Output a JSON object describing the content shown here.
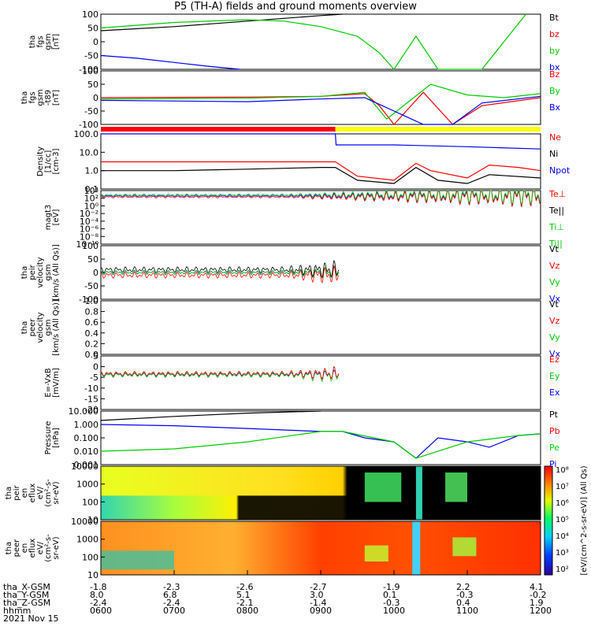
{
  "title": "P5 (TH-A) fields and ground moments overview",
  "panels": [
    {
      "id": "fgs-gsm",
      "ylabel": [
        "tha",
        "fgs",
        "gsm",
        "[nT]"
      ],
      "ticks": [
        "100",
        "50",
        "0",
        "-50",
        "-100"
      ],
      "legend": [
        {
          "name": "Bt",
          "color": "#000000"
        },
        {
          "name": "bz",
          "color": "#ff0000"
        },
        {
          "name": "by",
          "color": "#00cc00"
        },
        {
          "name": "bx",
          "color": "#0000ff"
        }
      ]
    },
    {
      "id": "fgs-gsm-t89",
      "ylabel": [
        "tha",
        "fgs",
        "gsm",
        "-t89",
        "[nT]"
      ],
      "ticks": [
        "100",
        "50",
        "0",
        "-50",
        "-100"
      ],
      "legend": [
        {
          "name": "Bz",
          "color": "#ff0000"
        },
        {
          "name": "By",
          "color": "#00cc00"
        },
        {
          "name": "Bx",
          "color": "#0000ff"
        }
      ]
    },
    {
      "id": "density",
      "ylabel": [
        "Density",
        "[1/cc]",
        "[cm-3]"
      ],
      "ticks": [
        "100.0",
        "10.0",
        "1.0",
        "0.1"
      ],
      "legend": [
        {
          "name": "Ne",
          "color": "#ff0000"
        },
        {
          "name": "Ni",
          "color": "#000000"
        },
        {
          "name": "Npot",
          "color": "#0000ff"
        }
      ]
    },
    {
      "id": "temperature",
      "ylabel": [
        "magt3",
        "[eV]"
      ],
      "ticks": [
        "10⁴",
        "10²",
        "10⁰",
        "10⁻²",
        "10⁻⁴",
        "10⁻⁶",
        "10⁻⁸",
        "10⁻¹⁰"
      ],
      "legend": [
        {
          "name": "Te⊥",
          "color": "#ff0000"
        },
        {
          "name": "Te||",
          "color": "#000000"
        },
        {
          "name": "Ti⊥",
          "color": "#00cc00"
        },
        {
          "name": "Ti||",
          "color": "#00cc00"
        }
      ]
    },
    {
      "id": "peir-velocity",
      "ylabel": [
        "tha",
        "peir",
        "velocity",
        "gsm",
        "[km/s (All Qs)]"
      ],
      "ticks": [
        "100",
        "50",
        "0",
        "-50",
        "-100"
      ],
      "legend": [
        {
          "name": "Vt",
          "color": "#000000"
        },
        {
          "name": "Vz",
          "color": "#ff0000"
        },
        {
          "name": "Vy",
          "color": "#00cc00"
        },
        {
          "name": "Vx",
          "color": "#0000ff"
        }
      ]
    },
    {
      "id": "peer-velocity",
      "ylabel": [
        "tha",
        "peer",
        "velocity",
        "gsm",
        "[km/s (All Qs)]"
      ],
      "ticks": [
        "1.0",
        "0.8",
        "0.6",
        "0.4",
        "0.2",
        "0.0"
      ],
      "legend": [
        {
          "name": "Vt",
          "color": "#000000"
        },
        {
          "name": "Vz",
          "color": "#ff0000"
        },
        {
          "name": "Vy",
          "color": "#00cc00"
        },
        {
          "name": "Vx",
          "color": "#0000ff"
        }
      ]
    },
    {
      "id": "efield",
      "ylabel": [
        "E=-VxB",
        "[mV/m]"
      ],
      "ticks": [
        "5",
        "0",
        "-5",
        "-10",
        "-15",
        "-20"
      ],
      "legend": [
        {
          "name": "Ez",
          "color": "#ff0000"
        },
        {
          "name": "Ey",
          "color": "#00cc00"
        },
        {
          "name": "Ex",
          "color": "#0000ff"
        }
      ]
    },
    {
      "id": "pressure",
      "ylabel": [
        "Pressure",
        "[nPa]"
      ],
      "ticks": [
        "10.000",
        "1.000",
        "0.100",
        "0.010",
        "0.001"
      ],
      "legend": [
        {
          "name": "Pt",
          "color": "#000000"
        },
        {
          "name": "Pb",
          "color": "#ff0000"
        },
        {
          "name": "Pe",
          "color": "#00cc00"
        },
        {
          "name": "Pi",
          "color": "#0000ff"
        }
      ]
    },
    {
      "id": "peir-spectrogram",
      "ylabel": [
        "tha",
        "peir",
        "en",
        "eflux",
        "eV/",
        "(cm²-s-",
        "sr-eV)"
      ],
      "ticks": [
        "10000",
        "1000",
        "100",
        "10"
      ],
      "legend": []
    },
    {
      "id": "peer-spectrogram",
      "ylabel": [
        "tha",
        "peer",
        "en",
        "eflux",
        "eV/",
        "(cm²-s-",
        "sr-eV)"
      ],
      "ticks": [
        "10000",
        "1000",
        "100",
        "10"
      ],
      "legend": []
    }
  ],
  "colorbar": {
    "ticks": [
      "10⁸",
      "10⁷",
      "10⁶",
      "10⁵",
      "10⁴",
      "10³",
      "10²"
    ],
    "label": "[eV/(cm^2-s-sr-eV)] (All Qs)"
  },
  "time_axis": {
    "rows": [
      {
        "label": "tha_X-GSM",
        "values": [
          "-1.8",
          "-2.3",
          "-2.6",
          "-2.7",
          "-1.9",
          "2.2",
          "4.1"
        ]
      },
      {
        "label": "tha_Y-GSM",
        "values": [
          "8.0",
          "6.8",
          "5.1",
          "3.0",
          "0.1",
          "-0.3",
          "-0.2"
        ]
      },
      {
        "label": "tha_Z-GSM",
        "values": [
          "-2.4",
          "-2.4",
          "-2.1",
          "-1.4",
          "-0.3",
          "0.4",
          "1.9"
        ]
      },
      {
        "label": "hhmm",
        "values": [
          "0600",
          "0700",
          "0800",
          "0900",
          "1000",
          "1100",
          "1200"
        ]
      }
    ],
    "date": "2021 Nov 15"
  },
  "chart_data": {
    "type": "line",
    "title": "P5 (TH-A) fields and ground moments overview",
    "x_unit": "UT hhmm",
    "x": [
      "0600",
      "0700",
      "0800",
      "0900",
      "1000",
      "1100",
      "1200"
    ],
    "series": [
      {
        "name": "Bt",
        "panel": "fgs-gsm",
        "points": [
          [
            6.0,
            40
          ],
          [
            7.0,
            55
          ],
          [
            8.0,
            75
          ],
          [
            9.0,
            95
          ],
          [
            9.3,
            100
          ]
        ]
      },
      {
        "name": "by",
        "panel": "fgs-gsm",
        "points": [
          [
            6.0,
            50
          ],
          [
            7.0,
            70
          ],
          [
            8.0,
            80
          ],
          [
            8.5,
            75
          ],
          [
            9.0,
            55
          ],
          [
            9.5,
            20
          ],
          [
            9.8,
            -40
          ],
          [
            10.0,
            -100
          ],
          [
            10.3,
            20
          ],
          [
            10.6,
            -100
          ],
          [
            11.2,
            -100
          ],
          [
            11.5,
            0
          ],
          [
            11.8,
            100
          ]
        ]
      },
      {
        "name": "bx",
        "panel": "fgs-gsm",
        "points": [
          [
            6.0,
            -50
          ],
          [
            6.5,
            -60
          ],
          [
            7.0,
            -75
          ],
          [
            7.5,
            -90
          ],
          [
            7.9,
            -100
          ]
        ]
      },
      {
        "name": "Bz",
        "panel": "fgs-gsm-t89",
        "points": [
          [
            6.0,
            0
          ],
          [
            8.0,
            2
          ],
          [
            9.0,
            5
          ],
          [
            9.3,
            10
          ],
          [
            9.6,
            15
          ],
          [
            9.8,
            -30
          ],
          [
            10.0,
            -110
          ],
          [
            10.4,
            20
          ],
          [
            10.8,
            -100
          ],
          [
            11.2,
            -30
          ],
          [
            12.0,
            0
          ]
        ]
      },
      {
        "name": "By",
        "panel": "fgs-gsm-t89",
        "points": [
          [
            6.0,
            -5
          ],
          [
            8.0,
            -2
          ],
          [
            9.0,
            5
          ],
          [
            9.6,
            20
          ],
          [
            9.9,
            -80
          ],
          [
            10.5,
            50
          ],
          [
            11.0,
            10
          ],
          [
            11.5,
            0
          ],
          [
            12.0,
            15
          ]
        ]
      },
      {
        "name": "Bx",
        "panel": "fgs-gsm-t89",
        "points": [
          [
            6.0,
            -10
          ],
          [
            8.0,
            -15
          ],
          [
            9.0,
            -5
          ],
          [
            9.6,
            0
          ],
          [
            10.4,
            -120
          ],
          [
            10.8,
            -100
          ],
          [
            11.2,
            -20
          ],
          [
            12.0,
            5
          ]
        ]
      },
      {
        "name": "Ne",
        "panel": "density",
        "points": [
          [
            6.0,
            3
          ],
          [
            7.0,
            3
          ],
          [
            8.0,
            3
          ],
          [
            9.0,
            3
          ],
          [
            9.2,
            3
          ],
          [
            9.5,
            0.5
          ],
          [
            10.0,
            0.3
          ],
          [
            10.3,
            2.5
          ],
          [
            10.5,
            1
          ],
          [
            11.0,
            0.4
          ],
          [
            11.3,
            2
          ],
          [
            11.7,
            1.5
          ],
          [
            12.0,
            1
          ]
        ]
      },
      {
        "name": "Ni",
        "panel": "density",
        "points": [
          [
            6.0,
            1
          ],
          [
            7.0,
            1
          ],
          [
            8.0,
            1.2
          ],
          [
            9.0,
            1.5
          ],
          [
            9.2,
            1.5
          ],
          [
            9.5,
            0.3
          ],
          [
            10.0,
            0.2
          ],
          [
            10.3,
            1.5
          ],
          [
            10.6,
            0.3
          ],
          [
            11.0,
            0.2
          ],
          [
            11.3,
            0.6
          ],
          [
            12.0,
            0.4
          ]
        ]
      },
      {
        "name": "Npot",
        "panel": "density",
        "points": [
          [
            6.0,
            150
          ],
          [
            7.0,
            160
          ],
          [
            8.0,
            180
          ],
          [
            9.0,
            200
          ],
          [
            9.2,
            180
          ],
          [
            9.21,
            25
          ],
          [
            10.0,
            25
          ],
          [
            11.0,
            20
          ],
          [
            12.0,
            15
          ]
        ]
      },
      {
        "name": "Pt",
        "panel": "pressure",
        "points": [
          [
            6.0,
            2
          ],
          [
            7.0,
            4
          ],
          [
            8.0,
            7
          ],
          [
            9.0,
            12
          ]
        ]
      },
      {
        "name": "Pi",
        "panel": "pressure",
        "points": [
          [
            6.0,
            1
          ],
          [
            7.0,
            0.8
          ],
          [
            8.0,
            0.5
          ],
          [
            9.0,
            0.3
          ],
          [
            9.3,
            0.3
          ],
          [
            9.6,
            0.1
          ],
          [
            10.0,
            0.05
          ],
          [
            10.3,
            0.003
          ],
          [
            10.6,
            0.1
          ],
          [
            11.0,
            0.05
          ],
          [
            11.3,
            0.02
          ],
          [
            11.7,
            0.15
          ],
          [
            12.0,
            0.2
          ]
        ]
      },
      {
        "name": "Pe",
        "panel": "pressure",
        "points": [
          [
            6.0,
            0.01
          ],
          [
            7.0,
            0.015
          ],
          [
            8.0,
            0.05
          ],
          [
            9.0,
            0.3
          ],
          [
            9.3,
            0.3
          ],
          [
            10.0,
            0.05
          ],
          [
            10.3,
            0.003
          ],
          [
            11.0,
            0.05
          ],
          [
            11.7,
            0.15
          ],
          [
            12.0,
            0.2
          ]
        ]
      }
    ]
  }
}
